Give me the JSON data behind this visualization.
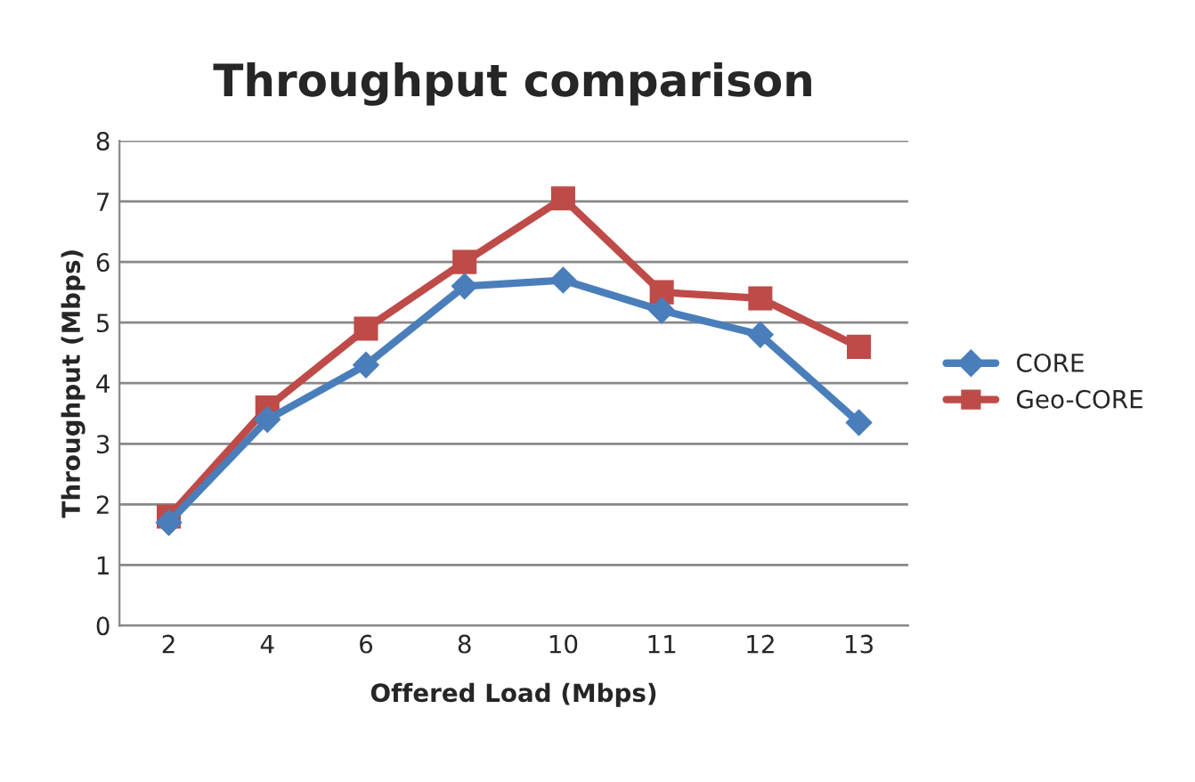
{
  "chart_data": {
    "type": "line",
    "title": "Throughput comparison",
    "xlabel": "Offered Load (Mbps)",
    "ylabel": "Throughput (Mbps)",
    "categories": [
      "2",
      "4",
      "6",
      "8",
      "10",
      "11",
      "12",
      "13"
    ],
    "series": [
      {
        "name": "CORE",
        "color": "#4a7ebb",
        "marker": "diamond",
        "values": [
          1.7,
          3.4,
          4.3,
          5.6,
          5.7,
          5.2,
          4.8,
          3.35
        ]
      },
      {
        "name": "Geo-CORE",
        "color": "#be4b48",
        "marker": "square",
        "values": [
          1.8,
          3.6,
          4.9,
          6.0,
          7.05,
          5.5,
          5.4,
          4.6
        ]
      }
    ],
    "ylim": [
      0,
      8
    ],
    "yticks": [
      0,
      1,
      2,
      3,
      4,
      5,
      6,
      7,
      8
    ],
    "grid": "y",
    "legend": "right"
  }
}
